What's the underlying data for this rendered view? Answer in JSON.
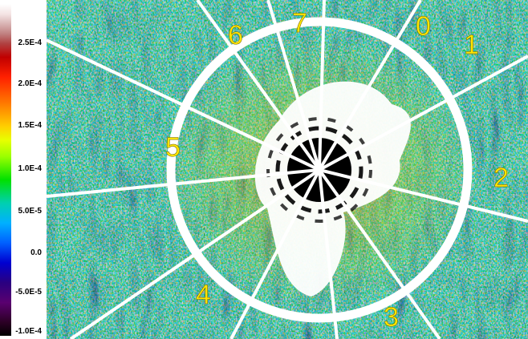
{
  "colorbar": {
    "ticks": [
      "2.5E-4",
      "2.0E-4",
      "1.5E-4",
      "1.0E-4",
      "5.0E-5",
      "0.0",
      "-5.0E-5",
      "-1.0E-4"
    ]
  },
  "sectors": {
    "labels": [
      "0",
      "1",
      "2",
      "3",
      "4",
      "5",
      "6",
      "7"
    ]
  },
  "colors": {
    "label": "#ffe600",
    "background_dark": "#121a6a",
    "ring": "#ffffff"
  }
}
